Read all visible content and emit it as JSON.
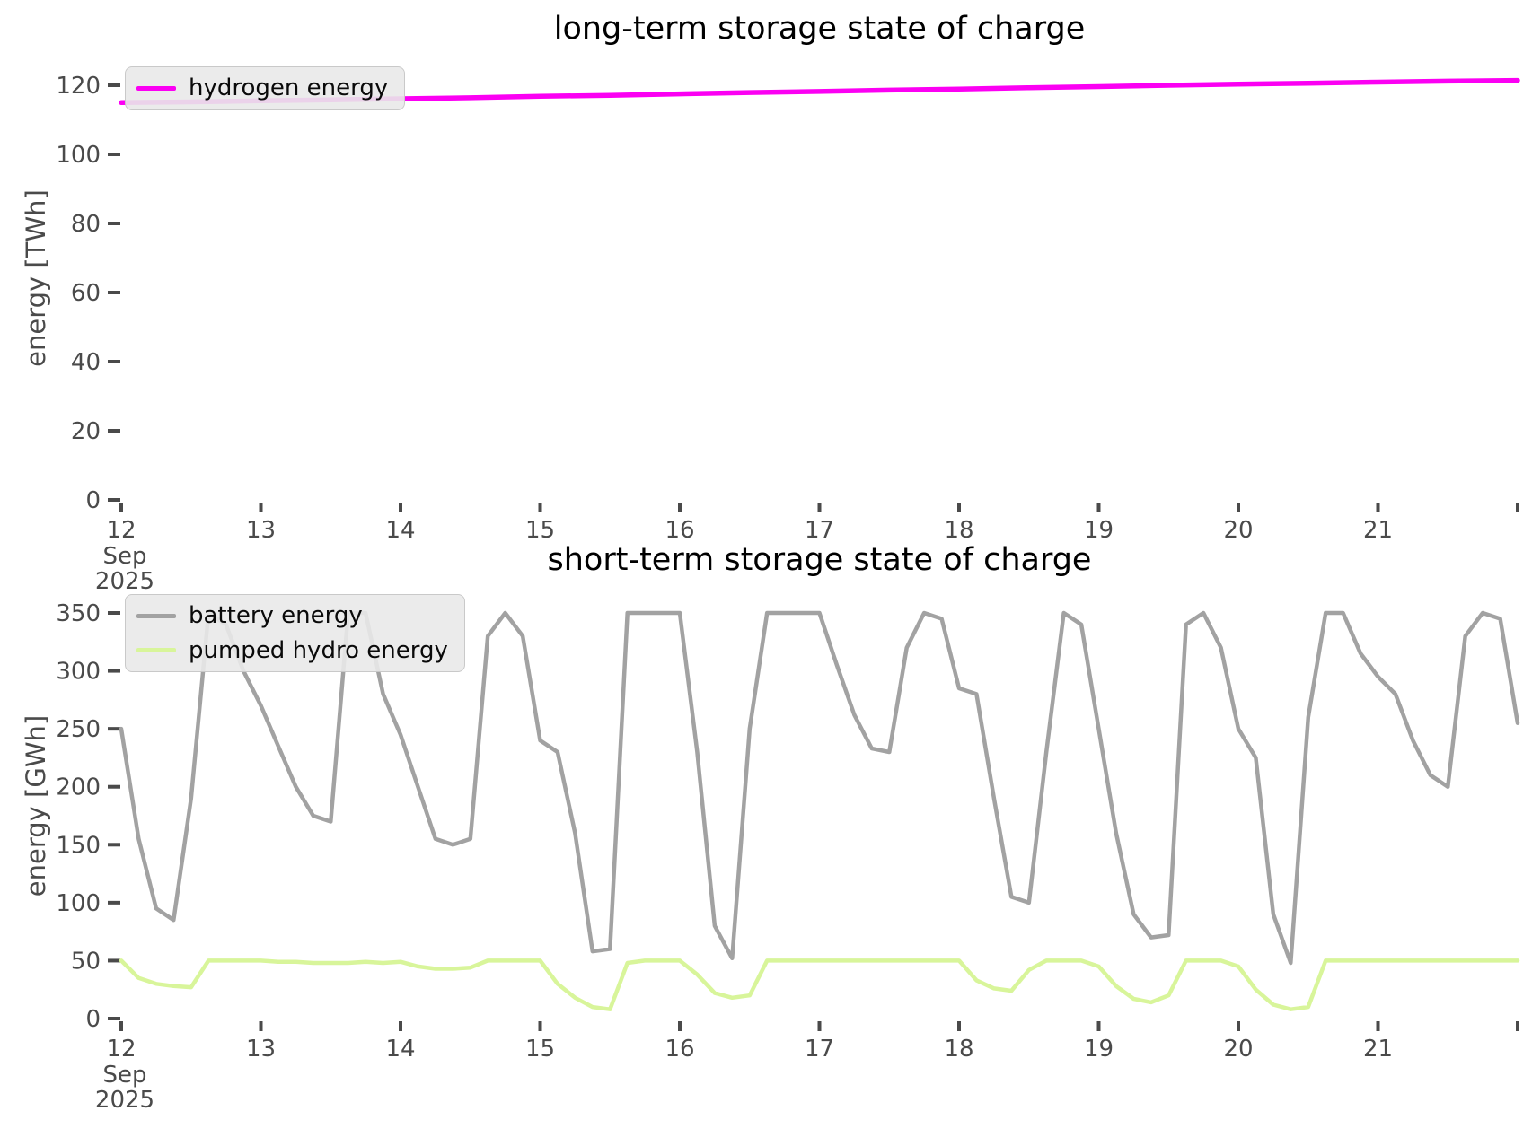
{
  "text_color": "#4a4a4a",
  "chart_data": [
    {
      "type": "line",
      "title": "long-term storage state of charge",
      "ylabel": "energy [TWh]",
      "xlabel": "",
      "x_axis": "days of September 2025",
      "xlim": [
        12,
        22
      ],
      "ylim": [
        0,
        128
      ],
      "grid": false,
      "legend_position": "upper left",
      "y_ticks": [
        0,
        20,
        40,
        60,
        80,
        100,
        120
      ],
      "x_ticks": [
        12,
        13,
        14,
        15,
        16,
        17,
        18,
        19,
        20,
        21,
        22
      ],
      "x_tick_labels": [
        "12",
        "13",
        "14",
        "15",
        "16",
        "17",
        "18",
        "19",
        "20",
        "21",
        ""
      ],
      "x_first_tick_sublabels": [
        "Sep",
        "2025"
      ],
      "legend": {
        "entries": [
          {
            "label": "hydrogen energy",
            "color": "#fb00f3"
          }
        ]
      },
      "series": [
        {
          "name": "hydrogen energy",
          "color": "#fb00f3",
          "line_width": 5.5,
          "x": [
            12,
            12.5,
            13,
            13.5,
            14,
            14.5,
            15,
            15.5,
            16,
            16.5,
            17,
            17.5,
            18,
            18.5,
            19,
            19.5,
            20,
            20.5,
            21,
            21.5,
            22
          ],
          "y": [
            115.0,
            115.2,
            115.5,
            115.8,
            116.1,
            116.4,
            116.8,
            117.1,
            117.5,
            117.9,
            118.2,
            118.6,
            118.9,
            119.3,
            119.6,
            120.0,
            120.3,
            120.6,
            120.9,
            121.2,
            121.4
          ]
        }
      ]
    },
    {
      "type": "line",
      "title": "short-term storage state of charge",
      "ylabel": "energy [GWh]",
      "xlabel": "",
      "x_axis": "days of September 2025",
      "xlim": [
        12,
        22
      ],
      "ylim": [
        0,
        368
      ],
      "grid": false,
      "legend_position": "upper left",
      "y_ticks": [
        0,
        50,
        100,
        150,
        200,
        250,
        300,
        350
      ],
      "x_ticks": [
        12,
        13,
        14,
        15,
        16,
        17,
        18,
        19,
        20,
        21,
        22
      ],
      "x_tick_labels": [
        "12",
        "13",
        "14",
        "15",
        "16",
        "17",
        "18",
        "19",
        "20",
        "21",
        ""
      ],
      "x_first_tick_sublabels": [
        "Sep",
        "2025"
      ],
      "legend": {
        "entries": [
          {
            "label": "battery energy",
            "color": "#a2a2a2"
          },
          {
            "label": "pumped hydro energy",
            "color": "#d8f59a"
          }
        ]
      },
      "series": [
        {
          "name": "battery energy",
          "color": "#a2a2a2",
          "line_width": 4.5,
          "x": [
            12,
            12.125,
            12.25,
            12.375,
            12.5,
            12.625,
            12.75,
            12.875,
            13,
            13.125,
            13.25,
            13.375,
            13.5,
            13.625,
            13.75,
            13.875,
            14,
            14.125,
            14.25,
            14.375,
            14.5,
            14.625,
            14.75,
            14.875,
            15,
            15.125,
            15.25,
            15.375,
            15.5,
            15.625,
            15.75,
            15.875,
            16,
            16.125,
            16.25,
            16.375,
            16.5,
            16.625,
            16.75,
            16.875,
            17,
            17.125,
            17.25,
            17.375,
            17.5,
            17.625,
            17.75,
            17.875,
            18,
            18.125,
            18.25,
            18.375,
            18.5,
            18.625,
            18.75,
            18.875,
            19,
            19.125,
            19.25,
            19.375,
            19.5,
            19.625,
            19.75,
            19.875,
            20,
            20.125,
            20.25,
            20.375,
            20.5,
            20.625,
            20.75,
            20.875,
            21,
            21.125,
            21.25,
            21.375,
            21.5,
            21.625,
            21.75,
            21.875,
            22
          ],
          "y": [
            250,
            155,
            95,
            85,
            190,
            350,
            340,
            300,
            270,
            235,
            200,
            175,
            170,
            350,
            350,
            280,
            245,
            200,
            155,
            150,
            155,
            330,
            350,
            330,
            240,
            230,
            160,
            58,
            60,
            350,
            350,
            350,
            350,
            230,
            80,
            52,
            250,
            350,
            350,
            350,
            350,
            305,
            262,
            233,
            230,
            320,
            350,
            345,
            285,
            280,
            190,
            105,
            100,
            230,
            350,
            340,
            250,
            160,
            90,
            70,
            72,
            340,
            350,
            320,
            250,
            225,
            90,
            48,
            260,
            350,
            350,
            315,
            295,
            280,
            240,
            210,
            200,
            330,
            350,
            345,
            255
          ]
        },
        {
          "name": "pumped hydro energy",
          "color": "#d8f59a",
          "line_width": 4.5,
          "x": [
            12,
            12.125,
            12.25,
            12.375,
            12.5,
            12.625,
            12.75,
            12.875,
            13,
            13.125,
            13.25,
            13.375,
            13.5,
            13.625,
            13.75,
            13.875,
            14,
            14.125,
            14.25,
            14.375,
            14.5,
            14.625,
            14.75,
            14.875,
            15,
            15.125,
            15.25,
            15.375,
            15.5,
            15.625,
            15.75,
            15.875,
            16,
            16.125,
            16.25,
            16.375,
            16.5,
            16.625,
            16.75,
            16.875,
            17,
            17.125,
            17.25,
            17.375,
            17.5,
            17.625,
            17.75,
            17.875,
            18,
            18.125,
            18.25,
            18.375,
            18.5,
            18.625,
            18.75,
            18.875,
            19,
            19.125,
            19.25,
            19.375,
            19.5,
            19.625,
            19.75,
            19.875,
            20,
            20.125,
            20.25,
            20.375,
            20.5,
            20.625,
            20.75,
            20.875,
            21,
            21.125,
            21.25,
            21.375,
            21.5,
            21.625,
            21.75,
            21.875,
            22
          ],
          "y": [
            50,
            35,
            30,
            28,
            27,
            50,
            50,
            50,
            50,
            49,
            49,
            48,
            48,
            48,
            49,
            48,
            49,
            45,
            43,
            43,
            44,
            50,
            50,
            50,
            50,
            30,
            18,
            10,
            8,
            48,
            50,
            50,
            50,
            38,
            22,
            18,
            20,
            50,
            50,
            50,
            50,
            50,
            50,
            50,
            50,
            50,
            50,
            50,
            50,
            33,
            26,
            24,
            42,
            50,
            50,
            50,
            45,
            28,
            17,
            14,
            20,
            50,
            50,
            50,
            45,
            25,
            12,
            8,
            10,
            50,
            50,
            50,
            50,
            50,
            50,
            50,
            50,
            50,
            50,
            50,
            50
          ]
        }
      ]
    }
  ]
}
